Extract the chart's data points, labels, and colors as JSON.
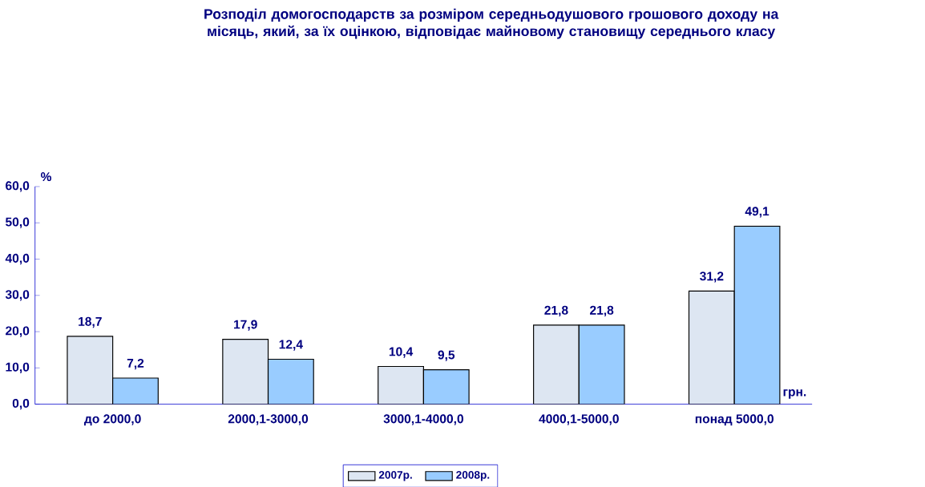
{
  "chart_data": {
    "type": "bar",
    "title": "Розподіл домогосподарств за розміром середньодушового грошового доходу на місяць, який, за їх оцінкою, відповідає майновому становищу середнього класу",
    "xlabel": "грн.",
    "ylabel": "%",
    "categories": [
      "до 2000,0",
      "2000,1-3000,0",
      "3000,1-4000,0",
      "4000,1-5000,0",
      "понад 5000,0"
    ],
    "series": [
      {
        "name": "2007р.",
        "color": "#dde6f2",
        "values": [
          18.7,
          17.9,
          10.4,
          21.8,
          31.2
        ],
        "value_labels": [
          "18,7",
          "17,9",
          "10,4",
          "21,8",
          "31,2"
        ]
      },
      {
        "name": "2008р.",
        "color": "#99ccff",
        "values": [
          7.2,
          12.4,
          9.5,
          21.8,
          49.1
        ],
        "value_labels": [
          "7,2",
          "12,4",
          "9,5",
          "21,8",
          "49,1"
        ]
      }
    ],
    "ylim": [
      0,
      60
    ],
    "yticks": [
      {
        "value": 0,
        "label": "0,0"
      },
      {
        "value": 10,
        "label": "10,0"
      },
      {
        "value": 20,
        "label": "20,0"
      },
      {
        "value": 30,
        "label": "30,0"
      },
      {
        "value": 40,
        "label": "40,0"
      },
      {
        "value": 50,
        "label": "50,0"
      },
      {
        "value": 60,
        "label": "60,0"
      }
    ],
    "legend": "bottom",
    "grid": false
  }
}
